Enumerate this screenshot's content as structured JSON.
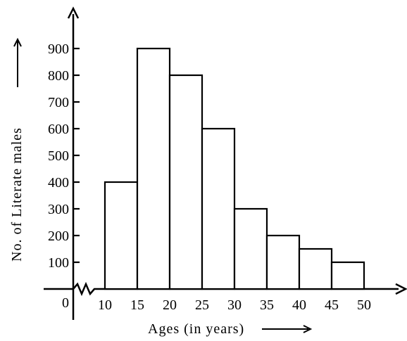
{
  "chart_data": {
    "type": "bar",
    "subtype": "histogram",
    "title": "",
    "xlabel": "Ages (in years)",
    "ylabel": "No. of Literate males",
    "origin_label": "0",
    "bins": [
      {
        "from": 10,
        "to": 15,
        "value": 400
      },
      {
        "from": 15,
        "to": 20,
        "value": 900
      },
      {
        "from": 20,
        "to": 25,
        "value": 800
      },
      {
        "from": 25,
        "to": 30,
        "value": 600
      },
      {
        "from": 30,
        "to": 35,
        "value": 300
      },
      {
        "from": 35,
        "to": 40,
        "value": 200
      },
      {
        "from": 40,
        "to": 45,
        "value": 150
      },
      {
        "from": 45,
        "to": 50,
        "value": 100
      }
    ],
    "x_tick_labels": [
      "10",
      "15",
      "20",
      "25",
      "30",
      "35",
      "40",
      "45",
      "50"
    ],
    "y_tick_labels": [
      "100",
      "200",
      "300",
      "400",
      "500",
      "600",
      "700",
      "800",
      "900"
    ],
    "ylim": [
      0,
      1000
    ],
    "x_axis_break": true,
    "grid": false,
    "legend": "none"
  }
}
